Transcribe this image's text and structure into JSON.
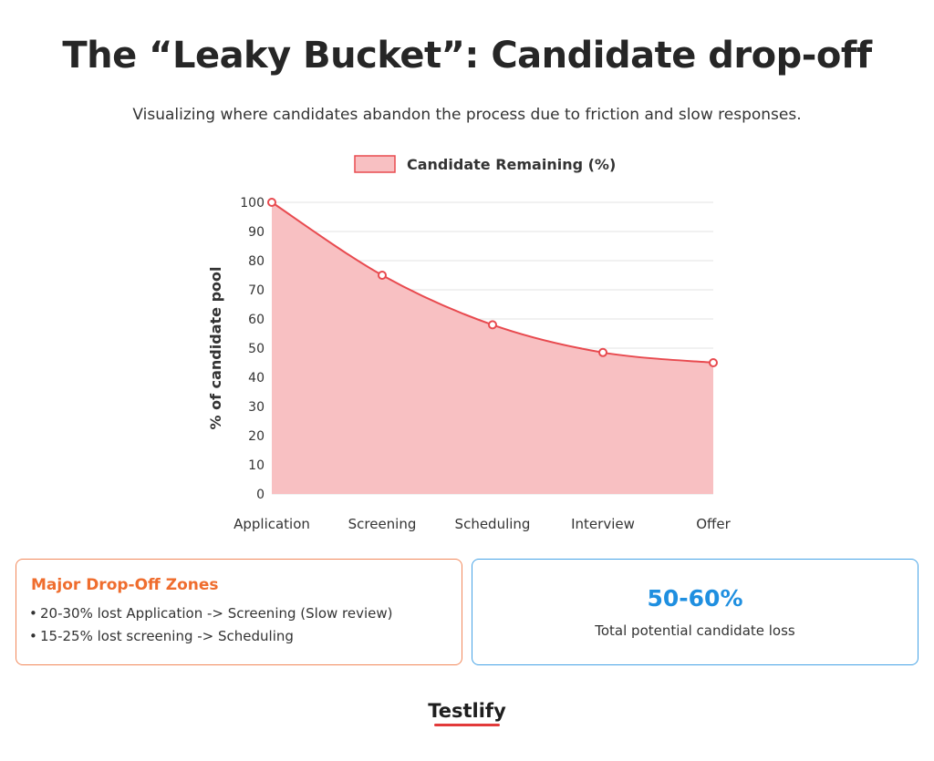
{
  "title": "The “Leaky Bucket”: Candidate drop-off",
  "subtitle": "Visualizing where candidates abandon the process due to friction and slow responses.",
  "chart_data": {
    "type": "area",
    "categories": [
      "Application",
      "Screening",
      "Scheduling",
      "Interview",
      "Offer"
    ],
    "series": [
      {
        "name": "Candidate Remaining (%)",
        "values": [
          100,
          75,
          58,
          48.5,
          45
        ]
      }
    ],
    "ylabel": "% of candidate pool",
    "xlabel": "",
    "ylim": [
      0,
      100
    ],
    "yticks": [
      0,
      10,
      20,
      30,
      40,
      50,
      60,
      70,
      80,
      90,
      100
    ],
    "grid": true,
    "legend": "top-center",
    "colors": {
      "line": "#e84a4f",
      "fill": "#f8c0c2",
      "grid": "#e3e3e3"
    }
  },
  "zones": {
    "title": "Major Drop-Off Zones",
    "items": [
      "20-30% lost Application -> Screening (Slow review)",
      "15-25% lost screening -> Scheduling"
    ]
  },
  "stat": {
    "value": "50-60%",
    "label": "Total potential candidate loss"
  },
  "brand": "Testlify"
}
